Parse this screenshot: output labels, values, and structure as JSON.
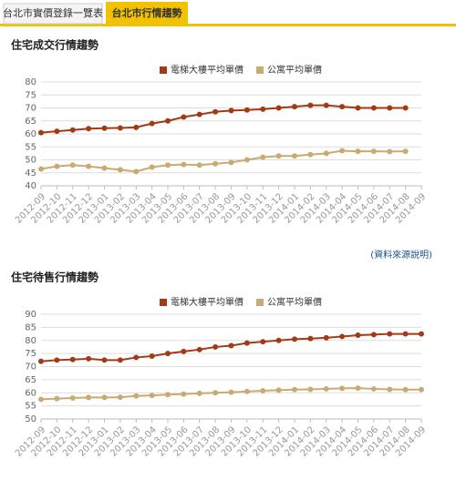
{
  "tabs": [
    "台北市實價登錄一覽表",
    "台北市行情趨勢"
  ],
  "source_link": "(資料來源說明)",
  "chart_data": [
    {
      "type": "line",
      "title": "住宅成交行情趨勢",
      "categories": [
        "2012-09",
        "2012-10",
        "2012-11",
        "2012-12",
        "2013-01",
        "2013-02",
        "2013-03",
        "2013-04",
        "2013-05",
        "2013-06",
        "2013-07",
        "2013-08",
        "2013-09",
        "2013-10",
        "2013-11",
        "2013-12",
        "2014-01",
        "2014-02",
        "2014-03",
        "2014-04",
        "2014-05",
        "2014-06",
        "2014-07",
        "2014-08",
        "2014-09"
      ],
      "series": [
        {
          "name": "電梯大樓平均單價",
          "color": "#a33a16",
          "values": [
            60.5,
            61,
            61.5,
            62,
            62.2,
            62.3,
            62.5,
            64,
            65,
            66.5,
            67.5,
            68.5,
            69,
            69.2,
            69.5,
            70,
            70.5,
            71,
            71,
            70.5,
            70,
            70,
            70,
            70,
            null
          ]
        },
        {
          "name": "公寓平均單價",
          "color": "#c9aa72",
          "values": [
            46.5,
            47.5,
            48,
            47.5,
            46.8,
            46.2,
            45.5,
            47.2,
            48,
            48.2,
            48,
            48.5,
            49,
            50,
            51,
            51.5,
            51.5,
            52,
            52.5,
            53.5,
            53.3,
            53.3,
            53.2,
            53.3,
            null
          ]
        }
      ],
      "ylim": [
        40,
        80
      ],
      "yticks": [
        40,
        45,
        50,
        55,
        60,
        65,
        70,
        75,
        80
      ],
      "grid": true,
      "legend": "top"
    },
    {
      "type": "line",
      "title": "住宅待售行情趨勢",
      "categories": [
        "2012-09",
        "2012-10",
        "2012-11",
        "2012-12",
        "2013-01",
        "2013-02",
        "2013-03",
        "2013-04",
        "2013-05",
        "2013-06",
        "2013-07",
        "2013-08",
        "2013-09",
        "2013-10",
        "2013-11",
        "2013-12",
        "2014-01",
        "2014-02",
        "2014-03",
        "2014-04",
        "2014-05",
        "2014-06",
        "2014-07",
        "2014-08",
        "2014-09"
      ],
      "series": [
        {
          "name": "電梯大樓平均單價",
          "color": "#a33a16",
          "values": [
            72,
            72.5,
            72.7,
            73,
            72.5,
            72.5,
            73.5,
            74,
            75,
            75.8,
            76.5,
            77.5,
            78,
            79,
            79.5,
            80,
            80.5,
            80.7,
            81,
            81.5,
            82,
            82.2,
            82.5,
            82.5,
            82.5
          ]
        },
        {
          "name": "公寓平均單價",
          "color": "#c9aa72",
          "values": [
            57.5,
            57.8,
            58,
            58.2,
            58.2,
            58.3,
            58.8,
            59,
            59.3,
            59.5,
            59.8,
            60,
            60.2,
            60.5,
            60.8,
            61,
            61.2,
            61.3,
            61.5,
            61.7,
            61.8,
            61.5,
            61.3,
            61.2,
            61.2
          ]
        }
      ],
      "ylim": [
        50,
        90
      ],
      "yticks": [
        50,
        55,
        60,
        65,
        70,
        75,
        80,
        85,
        90
      ],
      "grid": true,
      "legend": "top"
    }
  ]
}
